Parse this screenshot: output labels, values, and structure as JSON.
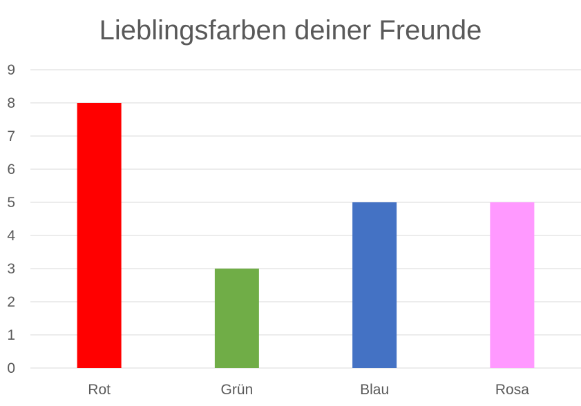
{
  "chart_data": {
    "type": "bar",
    "title": "Lieblingsfarben deiner Freunde",
    "xlabel": "",
    "ylabel": "",
    "categories": [
      "Rot",
      "Grün",
      "Blau",
      "Rosa"
    ],
    "values": [
      8,
      3,
      5,
      5
    ],
    "colors": [
      "#ff0000",
      "#70ad47",
      "#4472c4",
      "#ff99ff"
    ],
    "ylim": [
      0,
      9
    ],
    "yticks": [
      "0",
      "1",
      "2",
      "3",
      "4",
      "5",
      "6",
      "7",
      "8",
      "9"
    ],
    "grid": true,
    "legend": "none"
  }
}
